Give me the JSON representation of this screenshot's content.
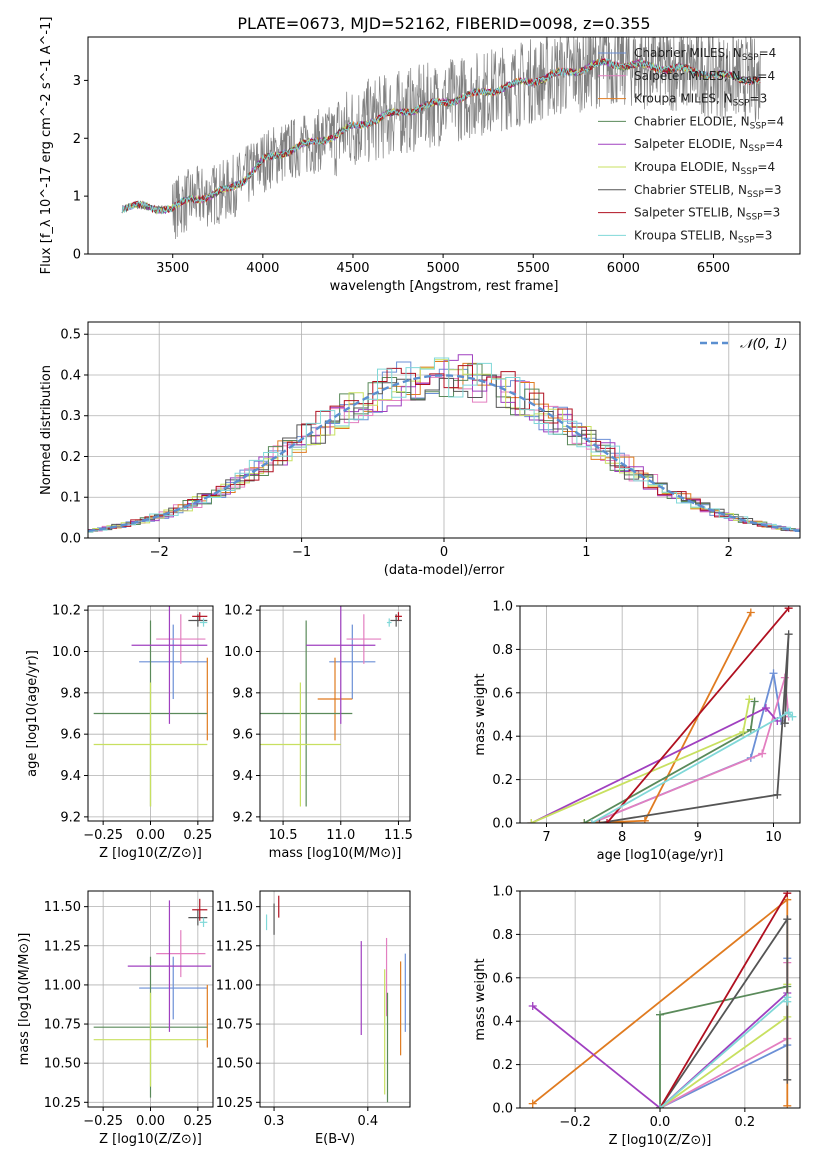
{
  "title": "PLATE=0673, MJD=52162, FIBERID=0098, z=0.355",
  "colors": {
    "chabrier_miles": "#6b8fd6",
    "salpeter_miles": "#e37fc0",
    "kroupa_miles": "#e07b20",
    "chabrier_elodie": "#5a8a5a",
    "salpeter_elodie": "#a040c0",
    "kroupa_elodie": "#c8e060",
    "chabrier_stelib": "#555555",
    "salpeter_stelib": "#b01020",
    "kroupa_stelib": "#80d8d8",
    "data": "#808080",
    "gauss": "#5b8fd0"
  },
  "chart_data": [
    {
      "id": "spectrum",
      "type": "line",
      "title": "PLATE=0673, MJD=52162, FIBERID=0098, z=0.355",
      "xlabel": "wavelength [Angstrom, rest frame]",
      "ylabel": "Flux [f_λ 10^-17 erg cm^-2 s^-1 A^-1]",
      "xlim": [
        3030,
        6980
      ],
      "ylim": [
        0,
        3.75
      ],
      "xticks": [
        "3500",
        "4000",
        "4500",
        "5000",
        "5500",
        "6000",
        "6500"
      ],
      "yticks": [
        "0",
        "1",
        "2",
        "3"
      ],
      "legend": [
        "Chabrier MILES, N_SSP=4",
        "Salpeter MILES, N_SSP=4",
        "Kroupa MILES, N_SSP=3",
        "Chabrier ELODIE, N_SSP=4",
        "Salpeter ELODIE, N_SSP=4",
        "Kroupa ELODIE, N_SSP=4",
        "Chabrier STELIB, N_SSP=3",
        "Salpeter STELIB, N_SSP=3",
        "Kroupa STELIB, N_SSP=3"
      ],
      "continuum": {
        "x": [
          3220,
          3300,
          3400,
          3500,
          3600,
          3700,
          3800,
          3900,
          4000,
          4100,
          4200,
          4300,
          4400,
          4500,
          4700,
          4900,
          5100,
          5300,
          5500,
          5700,
          5900,
          6100,
          6300,
          6500,
          6750
        ],
        "y": [
          0.8,
          0.82,
          0.8,
          0.78,
          0.95,
          1.0,
          1.1,
          1.3,
          1.6,
          1.75,
          1.85,
          1.95,
          2.05,
          2.2,
          2.4,
          2.55,
          2.7,
          2.85,
          3.0,
          3.15,
          3.3,
          3.25,
          3.2,
          3.1,
          3.0
        ]
      }
    },
    {
      "id": "residuals",
      "type": "line",
      "xlabel": "(data-model)/error",
      "ylabel": "Normed distribution",
      "xlim": [
        -2.5,
        2.5
      ],
      "ylim": [
        0,
        0.53
      ],
      "xticks": [
        "−2",
        "−1",
        "0",
        "1",
        "2"
      ],
      "yticks": [
        "0.0",
        "0.1",
        "0.2",
        "0.3",
        "0.4",
        "0.5"
      ],
      "legend": [
        "N(0,1)"
      ]
    },
    {
      "id": "age-vs-Z",
      "type": "scatter",
      "xlabel": "Z [log10(Z/Z⊙)]",
      "ylabel": "age  [log10(age/yr)]",
      "xlim": [
        -0.33,
        0.33
      ],
      "ylim": [
        9.18,
        10.22
      ],
      "xticks": [
        "−0.25",
        "0.00",
        "0.25"
      ],
      "yticks": [
        "9.2",
        "9.4",
        "9.6",
        "9.8",
        "10.0",
        "10.2"
      ],
      "points": [
        {
          "series": "Chabrier MILES",
          "x": 0.12,
          "y": 9.95,
          "xerr": 0.18,
          "yerr": 0.18
        },
        {
          "series": "Salpeter MILES",
          "x": 0.16,
          "y": 10.06,
          "xerr": 0.13,
          "yerr": 0.12
        },
        {
          "series": "Kroupa MILES",
          "x": 0.3,
          "y": 9.77,
          "xerr": 0.0,
          "yerr": 0.2
        },
        {
          "series": "Chabrier ELODIE",
          "x": 0.0,
          "y": 9.7,
          "xerr": 0.3,
          "yerr": 0.45
        },
        {
          "series": "Salpeter ELODIE",
          "x": 0.1,
          "y": 10.03,
          "xerr": 0.2,
          "yerr": 0.38
        },
        {
          "series": "Kroupa ELODIE",
          "x": 0.0,
          "y": 9.55,
          "xerr": 0.3,
          "yerr": 0.3
        },
        {
          "series": "Chabrier STELIB",
          "x": 0.25,
          "y": 10.15,
          "xerr": 0.05,
          "yerr": 0.03
        },
        {
          "series": "Salpeter STELIB",
          "x": 0.26,
          "y": 10.17,
          "xerr": 0.04,
          "yerr": 0.02
        },
        {
          "series": "Kroupa STELIB",
          "x": 0.28,
          "y": 10.14,
          "xerr": 0.02,
          "yerr": 0.02
        }
      ]
    },
    {
      "id": "age-vs-mass",
      "type": "scatter",
      "xlabel": "mass [log10(M/M⊙)]",
      "xlim": [
        10.3,
        11.6
      ],
      "ylim": [
        9.18,
        10.22
      ],
      "xticks": [
        "10.5",
        "11.0",
        "11.5"
      ],
      "yticks": [
        "9.2",
        "9.4",
        "9.6",
        "9.8",
        "10.0",
        "10.2"
      ],
      "points": [
        {
          "series": "Chabrier MILES",
          "x": 11.1,
          "y": 9.95,
          "xerr": 0.2,
          "yerr": 0.18
        },
        {
          "series": "Salpeter MILES",
          "x": 11.2,
          "y": 10.06,
          "xerr": 0.15,
          "yerr": 0.12
        },
        {
          "series": "Kroupa MILES",
          "x": 10.95,
          "y": 9.77,
          "xerr": 0.15,
          "yerr": 0.2
        },
        {
          "series": "Chabrier ELODIE",
          "x": 10.7,
          "y": 9.7,
          "xerr": 0.4,
          "yerr": 0.45
        },
        {
          "series": "Salpeter ELODIE",
          "x": 11.0,
          "y": 10.03,
          "xerr": 0.3,
          "yerr": 0.38
        },
        {
          "series": "Kroupa ELODIE",
          "x": 10.65,
          "y": 9.55,
          "xerr": 0.35,
          "yerr": 0.3
        },
        {
          "series": "Chabrier STELIB",
          "x": 11.48,
          "y": 10.15,
          "xerr": 0.05,
          "yerr": 0.03
        },
        {
          "series": "Salpeter STELIB",
          "x": 11.5,
          "y": 10.17,
          "xerr": 0.03,
          "yerr": 0.02
        },
        {
          "series": "Kroupa STELIB",
          "x": 11.42,
          "y": 10.14,
          "xerr": 0.02,
          "yerr": 0.02
        }
      ]
    },
    {
      "id": "weight-vs-age",
      "type": "line",
      "xlabel": "age  [log10(age/yr)]",
      "ylabel": "mass weight",
      "xlim": [
        6.65,
        10.35
      ],
      "ylim": [
        0,
        1.0
      ],
      "xticks": [
        "7",
        "8",
        "9",
        "10"
      ],
      "yticks": [
        "0.0",
        "0.2",
        "0.4",
        "0.6",
        "0.8",
        "1.0"
      ],
      "series": [
        {
          "name": "Chabrier MILES",
          "x": [
            7.6,
            9.7,
            10.0,
            10.1
          ],
          "y": [
            0.0,
            0.3,
            0.69,
            0.47
          ]
        },
        {
          "name": "Salpeter MILES",
          "x": [
            7.6,
            9.85,
            10.15,
            10.2
          ],
          "y": [
            0.0,
            0.32,
            0.67,
            0.49
          ]
        },
        {
          "name": "Kroupa MILES",
          "x": [
            7.5,
            8.3,
            9.7
          ],
          "y": [
            0.0,
            0.01,
            0.97
          ]
        },
        {
          "name": "Chabrier ELODIE",
          "x": [
            7.5,
            9.7,
            9.75
          ],
          "y": [
            0.0,
            0.43,
            0.56
          ]
        },
        {
          "name": "Salpeter ELODIE",
          "x": [
            6.8,
            9.9,
            10.05
          ],
          "y": [
            0.0,
            0.53,
            0.47
          ]
        },
        {
          "name": "Kroupa ELODIE",
          "x": [
            6.8,
            9.6,
            9.68
          ],
          "y": [
            0.0,
            0.42,
            0.57
          ]
        },
        {
          "name": "Chabrier STELIB",
          "x": [
            7.7,
            10.05,
            10.2,
            10.15
          ],
          "y": [
            0.0,
            0.13,
            0.87,
            0.46
          ]
        },
        {
          "name": "Salpeter STELIB",
          "x": [
            7.8,
            10.2
          ],
          "y": [
            0.0,
            0.99
          ]
        },
        {
          "name": "Kroupa STELIB",
          "x": [
            7.6,
            10.2,
            10.25
          ],
          "y": [
            0.0,
            0.51,
            0.49
          ]
        }
      ]
    },
    {
      "id": "mass-vs-Z",
      "type": "scatter",
      "xlabel": "Z [log10(Z/Z⊙)]",
      "ylabel": "mass [log10(M/M⊙)]",
      "xlim": [
        -0.33,
        0.33
      ],
      "ylim": [
        10.22,
        11.6
      ],
      "xticks": [
        "−0.25",
        "0.00",
        "0.25"
      ],
      "yticks": [
        "10.25",
        "10.50",
        "10.75",
        "11.00",
        "11.25",
        "11.50"
      ],
      "points": [
        {
          "series": "Chabrier MILES",
          "x": 0.12,
          "y": 10.98,
          "xerr": 0.18,
          "yerr": 0.2
        },
        {
          "series": "Salpeter MILES",
          "x": 0.16,
          "y": 11.2,
          "xerr": 0.13,
          "yerr": 0.15
        },
        {
          "series": "Kroupa MILES",
          "x": 0.3,
          "y": 10.8,
          "xerr": 0.0,
          "yerr": 0.2
        },
        {
          "series": "Chabrier ELODIE",
          "x": 0.0,
          "y": 10.73,
          "xerr": 0.3,
          "yerr": 0.45
        },
        {
          "series": "Salpeter ELODIE",
          "x": 0.1,
          "y": 11.12,
          "xerr": 0.22,
          "yerr": 0.42
        },
        {
          "series": "Kroupa ELODIE",
          "x": 0.0,
          "y": 10.65,
          "xerr": 0.3,
          "yerr": 0.3
        },
        {
          "series": "Chabrier STELIB",
          "x": 0.25,
          "y": 11.43,
          "xerr": 0.05,
          "yerr": 0.05
        },
        {
          "series": "Salpeter STELIB",
          "x": 0.26,
          "y": 11.48,
          "xerr": 0.04,
          "yerr": 0.07
        },
        {
          "series": "Kroupa STELIB",
          "x": 0.28,
          "y": 11.4,
          "xerr": 0.02,
          "yerr": 0.03
        }
      ]
    },
    {
      "id": "mass-vs-ebv",
      "type": "scatter",
      "xlabel": "E(B-V)",
      "xlim": [
        0.285,
        0.445
      ],
      "ylim": [
        10.22,
        11.6
      ],
      "xticks": [
        "0.3",
        "0.4"
      ],
      "yticks": [
        "10.25",
        "10.50",
        "10.75",
        "11.00",
        "11.25",
        "11.50"
      ],
      "points": [
        {
          "series": "Chabrier MILES",
          "x": 0.44,
          "y": 10.95,
          "yerr": 0.25
        },
        {
          "series": "Salpeter MILES",
          "x": 0.42,
          "y": 11.05,
          "yerr": 0.25
        },
        {
          "series": "Kroupa MILES",
          "x": 0.435,
          "y": 10.85,
          "yerr": 0.3
        },
        {
          "series": "Chabrier ELODIE",
          "x": 0.421,
          "y": 10.6,
          "yerr": 0.35
        },
        {
          "series": "Salpeter ELODIE",
          "x": 0.393,
          "y": 10.98,
          "yerr": 0.3
        },
        {
          "series": "Kroupa ELODIE",
          "x": 0.418,
          "y": 10.7,
          "yerr": 0.4
        },
        {
          "series": "Chabrier STELIB",
          "x": 0.3,
          "y": 11.42,
          "yerr": 0.1
        },
        {
          "series": "Salpeter STELIB",
          "x": 0.305,
          "y": 11.5,
          "yerr": 0.07
        },
        {
          "series": "Kroupa STELIB",
          "x": 0.292,
          "y": 11.4,
          "yerr": 0.05
        }
      ]
    },
    {
      "id": "weight-vs-Z",
      "type": "line",
      "xlabel": "Z [log10(Z/Z⊙)]",
      "ylabel": "mass weight",
      "xlim": [
        -0.33,
        0.33
      ],
      "ylim": [
        0,
        1.0
      ],
      "xticks": [
        "−0.2",
        "0.0",
        "0.2"
      ],
      "yticks": [
        "0.0",
        "0.2",
        "0.4",
        "0.6",
        "0.8",
        "1.0"
      ],
      "series": [
        {
          "name": "Chabrier MILES",
          "x": [
            0.0,
            0.3,
            0.3
          ],
          "y": [
            0.0,
            0.29,
            0.69
          ]
        },
        {
          "name": "Salpeter MILES",
          "x": [
            0.0,
            0.3,
            0.3
          ],
          "y": [
            0.0,
            0.32,
            0.67
          ]
        },
        {
          "name": "Kroupa MILES",
          "x": [
            -0.3,
            0.3,
            0.3
          ],
          "y": [
            0.02,
            0.96,
            0.01
          ]
        },
        {
          "name": "Chabrier ELODIE",
          "x": [
            0.0,
            0.0,
            0.3
          ],
          "y": [
            0.0,
            0.43,
            0.56
          ]
        },
        {
          "name": "Salpeter ELODIE",
          "x": [
            -0.3,
            0.0,
            0.3
          ],
          "y": [
            0.47,
            0.0,
            0.53
          ]
        },
        {
          "name": "Kroupa ELODIE",
          "x": [
            0.0,
            0.3,
            0.3
          ],
          "y": [
            0.0,
            0.42,
            0.57
          ]
        },
        {
          "name": "Chabrier STELIB",
          "x": [
            0.0,
            0.3,
            0.3
          ],
          "y": [
            0.0,
            0.87,
            0.13
          ]
        },
        {
          "name": "Salpeter STELIB",
          "x": [
            0.0,
            0.3
          ],
          "y": [
            0.0,
            0.99
          ]
        },
        {
          "name": "Kroupa STELIB",
          "x": [
            0.0,
            0.3,
            0.3
          ],
          "y": [
            0.0,
            0.51,
            0.49
          ]
        }
      ]
    }
  ]
}
